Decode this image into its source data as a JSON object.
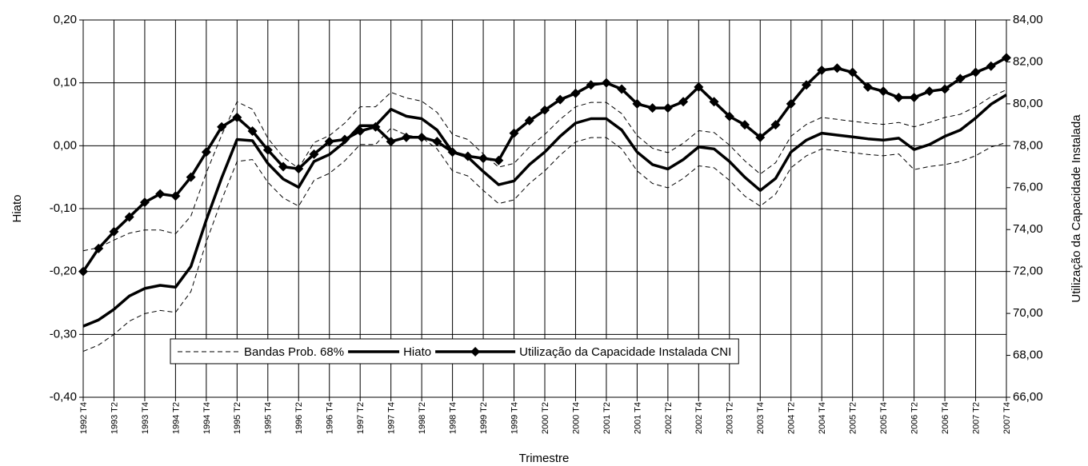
{
  "chart_data": {
    "type": "line",
    "xlabel": "Trimestre",
    "ylabel": "Hiato",
    "y2label": "Utilização da Capacidade Instalada",
    "categories": [
      "1992 T4",
      null,
      "1993 T2",
      null,
      "1993 T4",
      null,
      "1994 T2",
      null,
      "1994 T4",
      null,
      "1995 T2",
      null,
      "1995 T4",
      null,
      "1996 T2",
      null,
      "1996 T4",
      null,
      "1997 T2",
      null,
      "1997 T4",
      null,
      "1998 T2",
      null,
      "1998 T4",
      null,
      "1999 T2",
      null,
      "1999 T4",
      null,
      "2000 T2",
      null,
      "2000 T4",
      null,
      "2001 T2",
      null,
      "2001 T4",
      null,
      "2002 T2",
      null,
      "2002 T4",
      null,
      "2003 T2",
      null,
      "2003 T4",
      null,
      "2004 T2",
      null,
      "2004 T4",
      null,
      "2005 T2",
      null,
      "2005 T4",
      null,
      "2006 T2",
      null,
      "2006 T4",
      null,
      "2007 T2",
      null,
      "2007 T4"
    ],
    "series": [
      {
        "name": "Bandas Prob. 68%",
        "color": "#000000",
        "style": "dashed",
        "values": [
          -0.167,
          -0.162,
          -0.15,
          -0.139,
          -0.134,
          -0.134,
          -0.14,
          -0.112,
          -0.043,
          0.017,
          0.07,
          0.058,
          0.012,
          -0.018,
          -0.036,
          0.005,
          0.016,
          0.036,
          0.062,
          0.062,
          0.085,
          0.076,
          0.071,
          0.053,
          0.018,
          0.01,
          -0.013,
          -0.034,
          -0.028,
          -0.002,
          0.018,
          0.042,
          0.062,
          0.069,
          0.069,
          0.051,
          0.016,
          -0.004,
          -0.011,
          0.004,
          0.024,
          0.021,
          0.001,
          -0.024,
          -0.045,
          -0.027,
          0.015,
          0.034,
          0.045,
          0.042,
          0.039,
          0.036,
          0.034,
          0.037,
          0.03,
          0.037,
          0.045,
          0.05,
          0.062,
          0.078,
          0.089
        ],
        "lower_values": [
          -0.327,
          -0.317,
          -0.3,
          -0.279,
          -0.267,
          -0.262,
          -0.265,
          -0.232,
          -0.153,
          -0.086,
          -0.025,
          -0.022,
          -0.058,
          -0.083,
          -0.096,
          -0.055,
          -0.044,
          -0.024,
          0.002,
          0.002,
          0.028,
          0.017,
          0.013,
          -0.005,
          -0.04,
          -0.048,
          -0.071,
          -0.092,
          -0.086,
          -0.06,
          -0.04,
          -0.015,
          0.006,
          0.013,
          0.013,
          -0.005,
          -0.04,
          -0.06,
          -0.067,
          -0.052,
          -0.032,
          -0.035,
          -0.055,
          -0.08,
          -0.096,
          -0.077,
          -0.035,
          -0.016,
          -0.005,
          -0.008,
          -0.011,
          -0.014,
          -0.016,
          -0.013,
          -0.038,
          -0.033,
          -0.03,
          -0.025,
          -0.016,
          -0.002,
          0.005
        ]
      },
      {
        "name": "Hiato",
        "color": "#000000",
        "style": "solid",
        "values": [
          -0.287,
          -0.277,
          -0.26,
          -0.239,
          -0.227,
          -0.222,
          -0.225,
          -0.192,
          -0.118,
          -0.051,
          0.01,
          0.008,
          -0.028,
          -0.053,
          -0.066,
          -0.025,
          -0.014,
          0.006,
          0.032,
          0.032,
          0.058,
          0.047,
          0.043,
          0.025,
          -0.01,
          -0.018,
          -0.041,
          -0.062,
          -0.056,
          -0.03,
          -0.01,
          0.015,
          0.036,
          0.043,
          0.043,
          0.025,
          -0.01,
          -0.03,
          -0.037,
          -0.022,
          -0.002,
          -0.005,
          -0.025,
          -0.05,
          -0.071,
          -0.052,
          -0.01,
          0.009,
          0.02,
          0.017,
          0.014,
          0.011,
          0.009,
          0.012,
          -0.006,
          0.002,
          0.015,
          0.025,
          0.044,
          0.066,
          0.081
        ]
      },
      {
        "name": "Utilização da Capacidade Instalada CNI",
        "color": "#000000",
        "style": "diamond",
        "axis": "y2",
        "values": [
          72.0,
          73.1,
          73.9,
          74.6,
          75.3,
          75.7,
          75.6,
          76.5,
          77.7,
          78.9,
          79.35,
          78.7,
          77.8,
          77.0,
          76.9,
          77.6,
          78.2,
          78.3,
          78.7,
          78.9,
          78.2,
          78.4,
          78.4,
          78.2,
          77.7,
          77.5,
          77.4,
          77.3,
          78.6,
          79.2,
          79.7,
          80.2,
          80.5,
          80.9,
          81.0,
          80.7,
          80.0,
          79.8,
          79.8,
          80.1,
          80.8,
          80.1,
          79.4,
          79.0,
          78.4,
          79.0,
          80.0,
          80.9,
          81.6,
          81.7,
          81.5,
          80.8,
          80.6,
          80.3,
          80.3,
          80.6,
          80.7,
          81.2,
          81.5,
          81.8,
          82.2
        ]
      }
    ],
    "ylim": [
      -0.4,
      0.2
    ],
    "yticks": [
      {
        "value": -0.4,
        "label": "-0,40"
      },
      {
        "value": -0.3,
        "label": "-0,30"
      },
      {
        "value": -0.2,
        "label": "-0,20"
      },
      {
        "value": -0.1,
        "label": "-0,10"
      },
      {
        "value": 0,
        "label": "0,00"
      },
      {
        "value": 0.1,
        "label": "0,10"
      },
      {
        "value": 0.2,
        "label": "0,20"
      }
    ],
    "y2lim": [
      66,
      84
    ],
    "y2ticks": [
      {
        "value": 66,
        "label": "66,00"
      },
      {
        "value": 68,
        "label": "68,00"
      },
      {
        "value": 70,
        "label": "70,00"
      },
      {
        "value": 72,
        "label": "72,00"
      },
      {
        "value": 74,
        "label": "74,00"
      },
      {
        "value": 76,
        "label": "76,00"
      },
      {
        "value": 78,
        "label": "78,00"
      },
      {
        "value": 80,
        "label": "80,00"
      },
      {
        "value": 82,
        "label": "82,00"
      },
      {
        "value": 84,
        "label": "84,00"
      }
    ],
    "grid": true,
    "legend": "bottom"
  }
}
